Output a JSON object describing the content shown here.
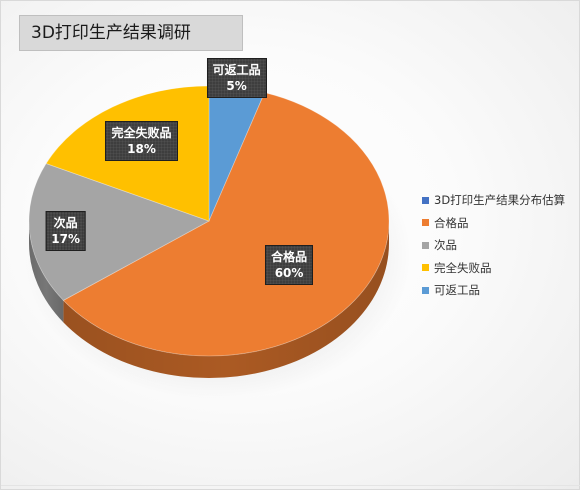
{
  "chart_data": {
    "type": "pie",
    "title": "3D打印生产结果调研",
    "slices": [
      {
        "name": "可返工品",
        "value": 5,
        "label": "5%",
        "color": "#5b9bd5"
      },
      {
        "name": "合格品",
        "value": 60,
        "label": "60%",
        "color": "#ed7d31"
      },
      {
        "name": "次品",
        "value": 17,
        "label": "17%",
        "color": "#a5a5a5"
      },
      {
        "name": "完全失败品",
        "value": 18,
        "label": "18%",
        "color": "#ffc000"
      }
    ],
    "legend": {
      "position": "right",
      "items": [
        {
          "name": "3D打印生产结果分布估算",
          "color": "#4472c4"
        },
        {
          "name": "合格品",
          "color": "#ed7d31"
        },
        {
          "name": "次品",
          "color": "#a5a5a5"
        },
        {
          "name": "完全失败品",
          "color": "#ffc000"
        },
        {
          "name": "可返工品",
          "color": "#5b9bd5"
        }
      ]
    },
    "style": "3d-pie"
  }
}
